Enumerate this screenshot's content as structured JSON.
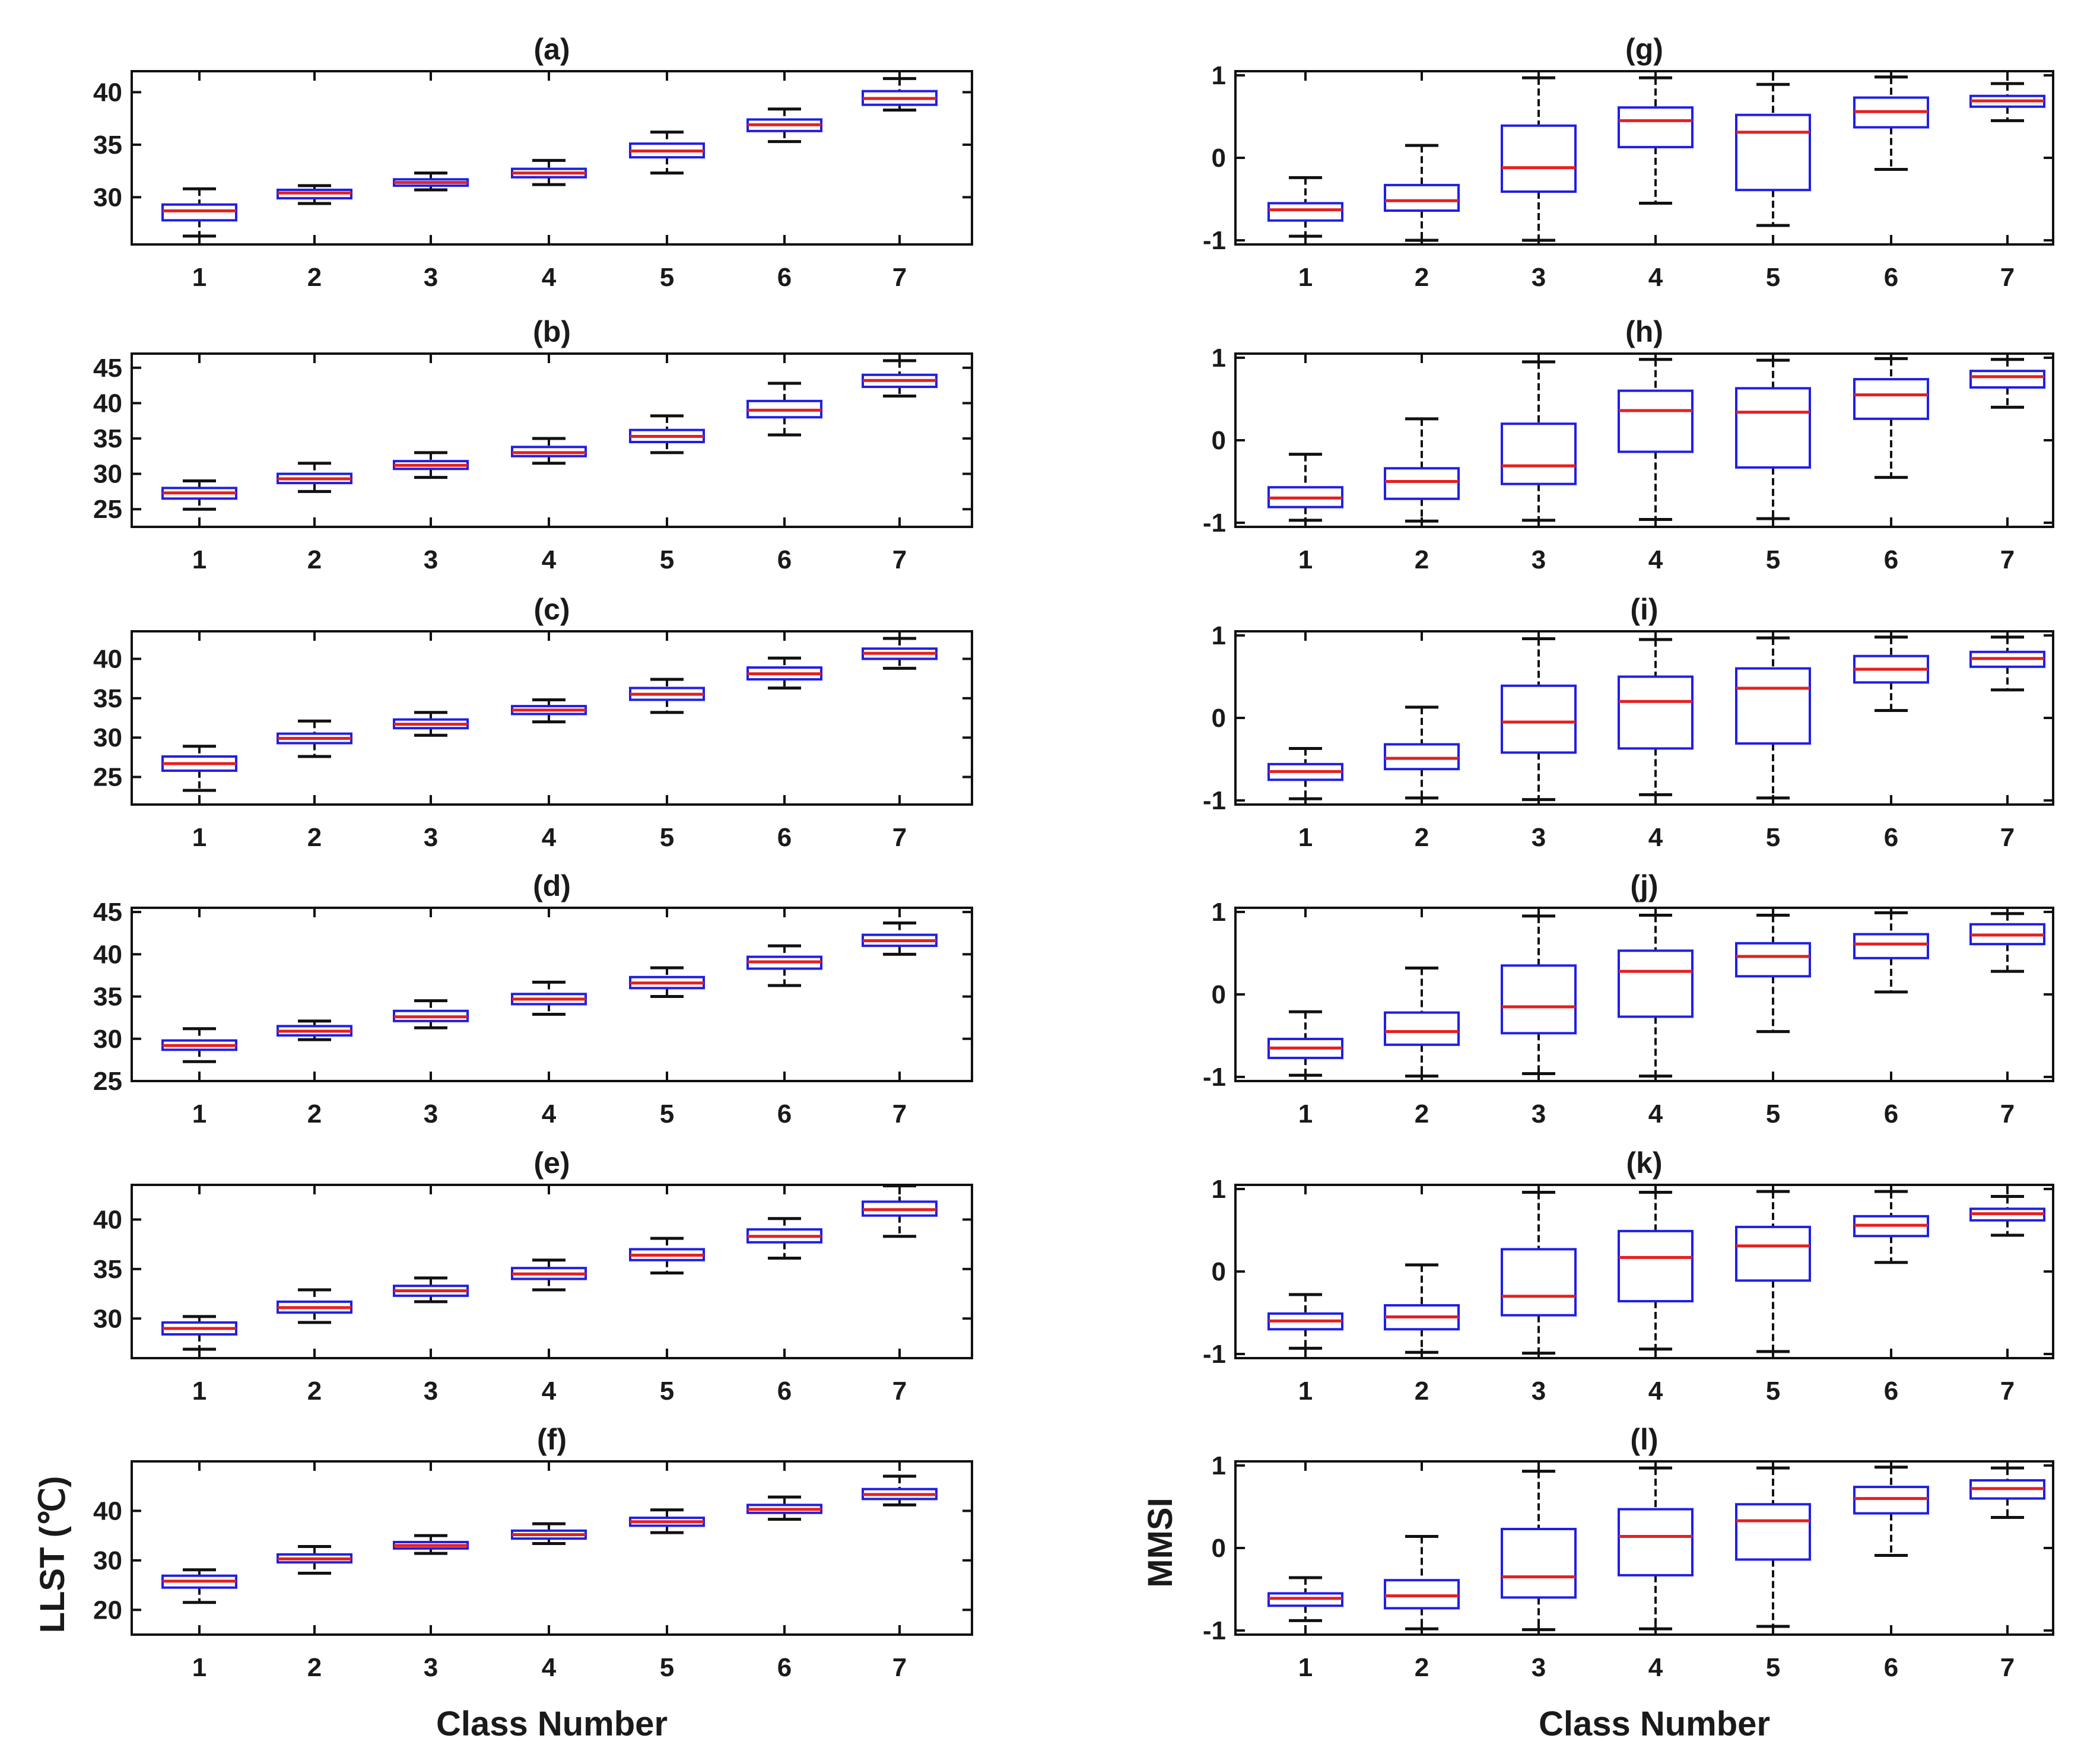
{
  "figure": {
    "left_column": {
      "ylabel": "LLST (℃)",
      "xlabel": "Class Number"
    },
    "right_column": {
      "ylabel": "MMSI",
      "xlabel": "Class Number"
    }
  },
  "colors": {
    "box": "#1f1fe6",
    "median": "#e61f1f",
    "whisker": "#111111",
    "frame": "#111111"
  },
  "chart_data": [
    {
      "type": "box",
      "title": "(a)",
      "xlabel": "",
      "ylabel": "",
      "categories": [
        "1",
        "2",
        "3",
        "4",
        "5",
        "6",
        "7"
      ],
      "ylim": [
        25.5,
        42
      ],
      "yticks": [
        "30",
        "35",
        "40"
      ],
      "boxes": [
        {
          "whislo": 26.3,
          "q1": 27.8,
          "med": 28.7,
          "q3": 29.3,
          "whishi": 30.8
        },
        {
          "whislo": 29.4,
          "q1": 29.9,
          "med": 30.4,
          "q3": 30.7,
          "whishi": 31.1
        },
        {
          "whislo": 30.7,
          "q1": 31.1,
          "med": 31.4,
          "q3": 31.7,
          "whishi": 32.3
        },
        {
          "whislo": 31.2,
          "q1": 31.9,
          "med": 32.3,
          "q3": 32.7,
          "whishi": 33.5
        },
        {
          "whislo": 32.3,
          "q1": 33.8,
          "med": 34.4,
          "q3": 35.1,
          "whishi": 36.2
        },
        {
          "whislo": 35.3,
          "q1": 36.3,
          "med": 36.9,
          "q3": 37.4,
          "whishi": 38.4
        },
        {
          "whislo": 38.3,
          "q1": 38.8,
          "med": 39.4,
          "q3": 40.1,
          "whishi": 41.3
        }
      ]
    },
    {
      "type": "box",
      "title": "(b)",
      "xlabel": "",
      "ylabel": "",
      "categories": [
        "1",
        "2",
        "3",
        "4",
        "5",
        "6",
        "7"
      ],
      "ylim": [
        22.5,
        47
      ],
      "yticks": [
        "25",
        "30",
        "35",
        "40",
        "45"
      ],
      "boxes": [
        {
          "whislo": 25.0,
          "q1": 26.5,
          "med": 27.3,
          "q3": 28.0,
          "whishi": 29.0
        },
        {
          "whislo": 27.5,
          "q1": 28.7,
          "med": 29.3,
          "q3": 30.0,
          "whishi": 31.5
        },
        {
          "whislo": 29.5,
          "q1": 30.7,
          "med": 31.2,
          "q3": 31.8,
          "whishi": 33.0
        },
        {
          "whislo": 31.5,
          "q1": 32.5,
          "med": 33.0,
          "q3": 33.8,
          "whishi": 35.0
        },
        {
          "whislo": 33.0,
          "q1": 34.5,
          "med": 35.3,
          "q3": 36.2,
          "whishi": 38.2
        },
        {
          "whislo": 35.5,
          "q1": 38.0,
          "med": 39.0,
          "q3": 40.3,
          "whishi": 42.8
        },
        {
          "whislo": 41.0,
          "q1": 42.3,
          "med": 43.2,
          "q3": 44.0,
          "whishi": 46.0
        }
      ]
    },
    {
      "type": "box",
      "title": "(c)",
      "xlabel": "",
      "ylabel": "",
      "categories": [
        "1",
        "2",
        "3",
        "4",
        "5",
        "6",
        "7"
      ],
      "ylim": [
        21.5,
        43.5
      ],
      "yticks": [
        "25",
        "30",
        "35",
        "40"
      ],
      "boxes": [
        {
          "whislo": 23.3,
          "q1": 25.8,
          "med": 26.7,
          "q3": 27.6,
          "whishi": 28.9
        },
        {
          "whislo": 27.6,
          "q1": 29.3,
          "med": 29.9,
          "q3": 30.5,
          "whishi": 32.1
        },
        {
          "whislo": 30.3,
          "q1": 31.2,
          "med": 31.7,
          "q3": 32.3,
          "whishi": 33.2
        },
        {
          "whislo": 32.0,
          "q1": 33.0,
          "med": 33.5,
          "q3": 34.0,
          "whishi": 34.8
        },
        {
          "whislo": 33.2,
          "q1": 34.8,
          "med": 35.5,
          "q3": 36.3,
          "whishi": 37.4
        },
        {
          "whislo": 36.3,
          "q1": 37.4,
          "med": 38.1,
          "q3": 38.9,
          "whishi": 40.1
        },
        {
          "whislo": 38.8,
          "q1": 40.0,
          "med": 40.7,
          "q3": 41.3,
          "whishi": 42.6
        }
      ]
    },
    {
      "type": "box",
      "title": "(d)",
      "xlabel": "",
      "ylabel": "",
      "categories": [
        "1",
        "2",
        "3",
        "4",
        "5",
        "6",
        "7"
      ],
      "ylim": [
        25,
        45.5
      ],
      "yticks": [
        "25",
        "30",
        "35",
        "40",
        "45"
      ],
      "boxes": [
        {
          "whislo": 27.3,
          "q1": 28.7,
          "med": 29.2,
          "q3": 29.8,
          "whishi": 31.2
        },
        {
          "whislo": 29.9,
          "q1": 30.4,
          "med": 30.9,
          "q3": 31.5,
          "whishi": 32.1
        },
        {
          "whislo": 31.3,
          "q1": 32.1,
          "med": 32.6,
          "q3": 33.3,
          "whishi": 34.5
        },
        {
          "whislo": 32.9,
          "q1": 34.1,
          "med": 34.7,
          "q3": 35.3,
          "whishi": 36.7
        },
        {
          "whislo": 35.0,
          "q1": 36.0,
          "med": 36.6,
          "q3": 37.3,
          "whishi": 38.4
        },
        {
          "whislo": 36.3,
          "q1": 38.3,
          "med": 39.1,
          "q3": 39.7,
          "whishi": 41.0
        },
        {
          "whislo": 40.0,
          "q1": 41.0,
          "med": 41.6,
          "q3": 42.3,
          "whishi": 43.7
        }
      ]
    },
    {
      "type": "box",
      "title": "(e)",
      "xlabel": "",
      "ylabel": "",
      "categories": [
        "1",
        "2",
        "3",
        "4",
        "5",
        "6",
        "7"
      ],
      "ylim": [
        26,
        43.5
      ],
      "yticks": [
        "30",
        "35",
        "40"
      ],
      "boxes": [
        {
          "whislo": 26.9,
          "q1": 28.4,
          "med": 29.0,
          "q3": 29.6,
          "whishi": 30.2
        },
        {
          "whislo": 29.6,
          "q1": 30.6,
          "med": 31.1,
          "q3": 31.7,
          "whishi": 32.9
        },
        {
          "whislo": 31.7,
          "q1": 32.3,
          "med": 32.8,
          "q3": 33.3,
          "whishi": 34.1
        },
        {
          "whislo": 32.9,
          "q1": 34.0,
          "med": 34.5,
          "q3": 35.1,
          "whishi": 35.9
        },
        {
          "whislo": 34.6,
          "q1": 35.9,
          "med": 36.4,
          "q3": 37.0,
          "whishi": 38.1
        },
        {
          "whislo": 36.1,
          "q1": 37.7,
          "med": 38.3,
          "q3": 39.0,
          "whishi": 40.1
        },
        {
          "whislo": 38.3,
          "q1": 40.4,
          "med": 41.0,
          "q3": 41.8,
          "whishi": 43.4
        }
      ]
    },
    {
      "type": "box",
      "title": "(f)",
      "xlabel": "Class Number",
      "ylabel": "LLST (℃)",
      "categories": [
        "1",
        "2",
        "3",
        "4",
        "5",
        "6",
        "7"
      ],
      "ylim": [
        15,
        50
      ],
      "yticks": [
        "20",
        "30",
        "40"
      ],
      "boxes": [
        {
          "whislo": 21.5,
          "q1": 24.5,
          "med": 25.8,
          "q3": 26.9,
          "whishi": 28.1
        },
        {
          "whislo": 27.4,
          "q1": 29.6,
          "med": 30.3,
          "q3": 31.2,
          "whishi": 32.8
        },
        {
          "whislo": 31.4,
          "q1": 32.4,
          "med": 33.0,
          "q3": 33.7,
          "whishi": 35.0
        },
        {
          "whislo": 33.4,
          "q1": 34.4,
          "med": 35.2,
          "q3": 36.0,
          "whishi": 37.4
        },
        {
          "whislo": 35.6,
          "q1": 37.0,
          "med": 37.8,
          "q3": 38.6,
          "whishi": 40.2
        },
        {
          "whislo": 38.3,
          "q1": 39.6,
          "med": 40.3,
          "q3": 41.2,
          "whishi": 42.8
        },
        {
          "whislo": 41.2,
          "q1": 42.4,
          "med": 43.3,
          "q3": 44.4,
          "whishi": 47.0
        }
      ]
    },
    {
      "type": "box",
      "title": "(g)",
      "xlabel": "",
      "ylabel": "",
      "categories": [
        "1",
        "2",
        "3",
        "4",
        "5",
        "6",
        "7"
      ],
      "ylim": [
        -1.05,
        1.05
      ],
      "yticks": [
        "-1",
        "0",
        "1"
      ],
      "boxes": [
        {
          "whislo": -0.95,
          "q1": -0.76,
          "med": -0.63,
          "q3": -0.55,
          "whishi": -0.24
        },
        {
          "whislo": -1.0,
          "q1": -0.64,
          "med": -0.52,
          "q3": -0.33,
          "whishi": 0.15
        },
        {
          "whislo": -1.0,
          "q1": -0.41,
          "med": -0.12,
          "q3": 0.39,
          "whishi": 0.97
        },
        {
          "whislo": -0.55,
          "q1": 0.13,
          "med": 0.45,
          "q3": 0.61,
          "whishi": 0.97
        },
        {
          "whislo": -0.82,
          "q1": -0.39,
          "med": 0.31,
          "q3": 0.52,
          "whishi": 0.89
        },
        {
          "whislo": -0.14,
          "q1": 0.37,
          "med": 0.56,
          "q3": 0.73,
          "whishi": 0.98
        },
        {
          "whislo": 0.45,
          "q1": 0.62,
          "med": 0.69,
          "q3": 0.75,
          "whishi": 0.9
        }
      ]
    },
    {
      "type": "box",
      "title": "(h)",
      "xlabel": "",
      "ylabel": "",
      "categories": [
        "1",
        "2",
        "3",
        "4",
        "5",
        "6",
        "7"
      ],
      "ylim": [
        -1.05,
        1.05
      ],
      "yticks": [
        "-1",
        "0",
        "1"
      ],
      "boxes": [
        {
          "whislo": -0.97,
          "q1": -0.81,
          "med": -0.7,
          "q3": -0.57,
          "whishi": -0.17
        },
        {
          "whislo": -0.98,
          "q1": -0.71,
          "med": -0.5,
          "q3": -0.34,
          "whishi": 0.26
        },
        {
          "whislo": -0.97,
          "q1": -0.53,
          "med": -0.31,
          "q3": 0.2,
          "whishi": 0.95
        },
        {
          "whislo": -0.96,
          "q1": -0.14,
          "med": 0.36,
          "q3": 0.6,
          "whishi": 0.98
        },
        {
          "whislo": -0.95,
          "q1": -0.33,
          "med": 0.34,
          "q3": 0.63,
          "whishi": 0.97
        },
        {
          "whislo": -0.45,
          "q1": 0.26,
          "med": 0.55,
          "q3": 0.74,
          "whishi": 0.99
        },
        {
          "whislo": 0.4,
          "q1": 0.64,
          "med": 0.77,
          "q3": 0.84,
          "whishi": 0.98
        }
      ]
    },
    {
      "type": "box",
      "title": "(i)",
      "xlabel": "",
      "ylabel": "",
      "categories": [
        "1",
        "2",
        "3",
        "4",
        "5",
        "6",
        "7"
      ],
      "ylim": [
        -1.05,
        1.05
      ],
      "yticks": [
        "-1",
        "0",
        "1"
      ],
      "boxes": [
        {
          "whislo": -0.98,
          "q1": -0.75,
          "med": -0.65,
          "q3": -0.56,
          "whishi": -0.37
        },
        {
          "whislo": -0.97,
          "q1": -0.62,
          "med": -0.49,
          "q3": -0.32,
          "whishi": 0.13
        },
        {
          "whislo": -0.99,
          "q1": -0.42,
          "med": -0.05,
          "q3": 0.39,
          "whishi": 0.96
        },
        {
          "whislo": -0.93,
          "q1": -0.37,
          "med": 0.2,
          "q3": 0.5,
          "whishi": 0.95
        },
        {
          "whislo": -0.97,
          "q1": -0.31,
          "med": 0.36,
          "q3": 0.6,
          "whishi": 0.97
        },
        {
          "whislo": 0.09,
          "q1": 0.43,
          "med": 0.59,
          "q3": 0.75,
          "whishi": 0.98
        },
        {
          "whislo": 0.34,
          "q1": 0.62,
          "med": 0.72,
          "q3": 0.8,
          "whishi": 0.98
        }
      ]
    },
    {
      "type": "box",
      "title": "(j)",
      "xlabel": "",
      "ylabel": "",
      "categories": [
        "1",
        "2",
        "3",
        "4",
        "5",
        "6",
        "7"
      ],
      "ylim": [
        -1.05,
        1.05
      ],
      "yticks": [
        "-1",
        "0",
        "1"
      ],
      "boxes": [
        {
          "whislo": -0.98,
          "q1": -0.77,
          "med": -0.65,
          "q3": -0.54,
          "whishi": -0.21
        },
        {
          "whislo": -0.99,
          "q1": -0.61,
          "med": -0.45,
          "q3": -0.22,
          "whishi": 0.32
        },
        {
          "whislo": -0.96,
          "q1": -0.47,
          "med": -0.15,
          "q3": 0.35,
          "whishi": 0.95
        },
        {
          "whislo": -0.99,
          "q1": -0.27,
          "med": 0.28,
          "q3": 0.53,
          "whishi": 0.96
        },
        {
          "whislo": -0.45,
          "q1": 0.22,
          "med": 0.46,
          "q3": 0.62,
          "whishi": 0.96
        },
        {
          "whislo": 0.03,
          "q1": 0.44,
          "med": 0.61,
          "q3": 0.73,
          "whishi": 0.99
        },
        {
          "whislo": 0.28,
          "q1": 0.61,
          "med": 0.72,
          "q3": 0.85,
          "whishi": 0.98
        }
      ]
    },
    {
      "type": "box",
      "title": "(k)",
      "xlabel": "",
      "ylabel": "",
      "categories": [
        "1",
        "2",
        "3",
        "4",
        "5",
        "6",
        "7"
      ],
      "ylim": [
        -1.05,
        1.05
      ],
      "yticks": [
        "-1",
        "0",
        "1"
      ],
      "boxes": [
        {
          "whislo": -0.93,
          "q1": -0.7,
          "med": -0.6,
          "q3": -0.51,
          "whishi": -0.28
        },
        {
          "whislo": -0.98,
          "q1": -0.7,
          "med": -0.55,
          "q3": -0.41,
          "whishi": 0.08
        },
        {
          "whislo": -0.99,
          "q1": -0.53,
          "med": -0.3,
          "q3": 0.27,
          "whishi": 0.96
        },
        {
          "whislo": -0.94,
          "q1": -0.36,
          "med": 0.17,
          "q3": 0.49,
          "whishi": 0.96
        },
        {
          "whislo": -0.97,
          "q1": -0.11,
          "med": 0.31,
          "q3": 0.54,
          "whishi": 0.97
        },
        {
          "whislo": 0.11,
          "q1": 0.43,
          "med": 0.56,
          "q3": 0.67,
          "whishi": 0.97
        },
        {
          "whislo": 0.44,
          "q1": 0.62,
          "med": 0.7,
          "q3": 0.76,
          "whishi": 0.91
        }
      ]
    },
    {
      "type": "box",
      "title": "(l)",
      "xlabel": "Class Number",
      "ylabel": "MMSI",
      "categories": [
        "1",
        "2",
        "3",
        "4",
        "5",
        "6",
        "7"
      ],
      "ylim": [
        -1.05,
        1.05
      ],
      "yticks": [
        "-1",
        "0",
        "1"
      ],
      "boxes": [
        {
          "whislo": -0.88,
          "q1": -0.7,
          "med": -0.61,
          "q3": -0.55,
          "whishi": -0.36
        },
        {
          "whislo": -0.98,
          "q1": -0.73,
          "med": -0.58,
          "q3": -0.39,
          "whishi": 0.14
        },
        {
          "whislo": -0.99,
          "q1": -0.6,
          "med": -0.35,
          "q3": 0.23,
          "whishi": 0.93
        },
        {
          "whislo": -0.98,
          "q1": -0.33,
          "med": 0.14,
          "q3": 0.47,
          "whishi": 0.97
        },
        {
          "whislo": -0.95,
          "q1": -0.14,
          "med": 0.33,
          "q3": 0.53,
          "whishi": 0.97
        },
        {
          "whislo": -0.09,
          "q1": 0.42,
          "med": 0.6,
          "q3": 0.74,
          "whishi": 0.98
        },
        {
          "whislo": 0.37,
          "q1": 0.6,
          "med": 0.72,
          "q3": 0.82,
          "whishi": 0.97
        }
      ]
    }
  ]
}
